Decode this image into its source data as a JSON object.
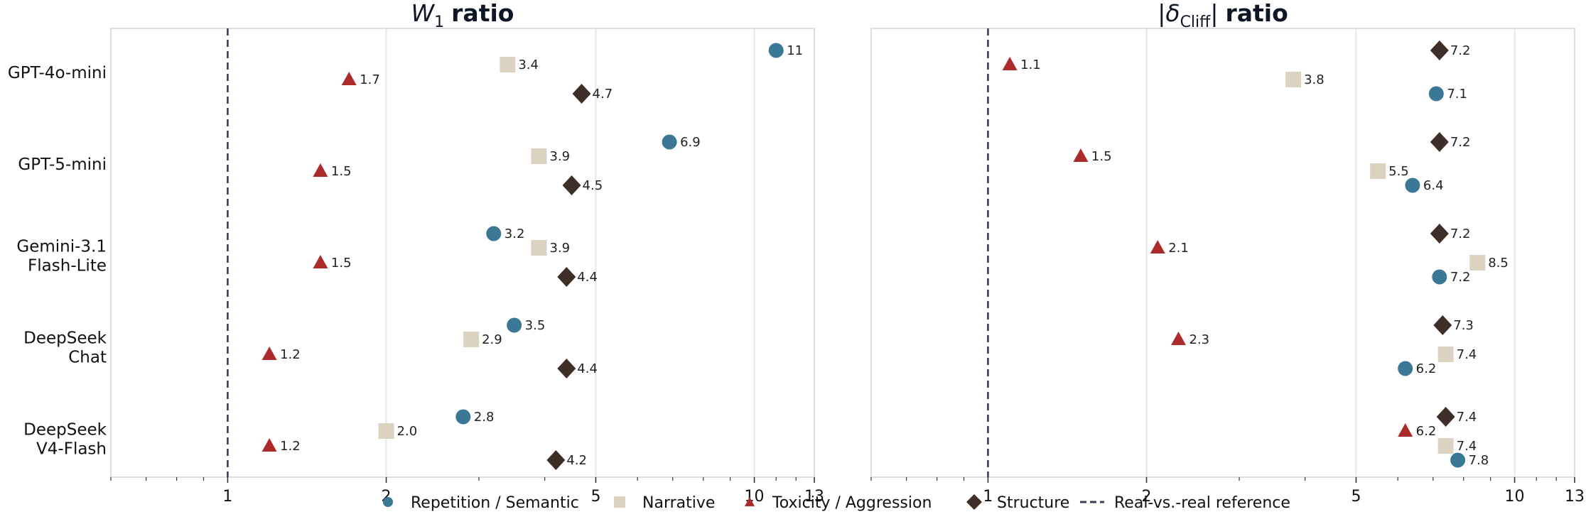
{
  "legend": [
    {
      "label": "Repetition / Semantic",
      "marker": "circle",
      "color": "#3a7896"
    },
    {
      "label": "Narrative",
      "marker": "square",
      "color": "#dcd2c2"
    },
    {
      "label": "Toxicity / Aggression",
      "marker": "triangle",
      "color": "#ad2a2a"
    },
    {
      "label": "Structure",
      "marker": "diamond",
      "color": "#3e2e27"
    },
    {
      "label": "Real-vs.-real reference",
      "marker": "dashed-line",
      "color": "#3a3f5a"
    }
  ],
  "chart_data": [
    {
      "type": "scatter",
      "title": "W₁ ratio",
      "title_main": "W",
      "title_sub": "1",
      "title_suffix": "ratio",
      "x_scale": "log",
      "xlim": [
        0.6,
        13
      ],
      "reference_x": 1,
      "x_ticks": [
        1,
        2,
        5,
        10,
        13
      ],
      "x_tick_labels": [
        "1",
        "2",
        "5",
        "10",
        "13"
      ],
      "grid": true,
      "categories": [
        "GPT-4o-mini",
        "GPT-5-mini",
        "Gemini-3.1 Flash-Lite",
        "DeepSeek Chat",
        "DeepSeek V4-Flash"
      ],
      "category_lines": [
        [
          "GPT-4o-mini"
        ],
        [
          "GPT-5-mini"
        ],
        [
          "Gemini-3.1",
          "Flash-Lite"
        ],
        [
          "DeepSeek",
          "Chat"
        ],
        [
          "DeepSeek",
          "V4-Flash"
        ]
      ],
      "series": [
        {
          "name": "Repetition / Semantic",
          "values": [
            11,
            6.9,
            3.2,
            3.5,
            2.8
          ],
          "labels": [
            "11",
            "6.9",
            "3.2",
            "3.5",
            "2.8"
          ]
        },
        {
          "name": "Narrative",
          "values": [
            3.4,
            3.9,
            3.9,
            2.9,
            2.0
          ],
          "labels": [
            "3.4",
            "3.9",
            "3.9",
            "2.9",
            "2.0"
          ]
        },
        {
          "name": "Toxicity / Aggression",
          "values": [
            1.7,
            1.5,
            1.5,
            1.2,
            1.2
          ],
          "labels": [
            "1.7",
            "1.5",
            "1.5",
            "1.2",
            "1.2"
          ]
        },
        {
          "name": "Structure",
          "values": [
            4.7,
            4.5,
            4.4,
            4.4,
            4.2
          ],
          "labels": [
            "4.7",
            "4.5",
            "4.4",
            "4.4",
            "4.2"
          ]
        }
      ],
      "series_order": [
        [
          "Repetition / Semantic",
          "Narrative",
          "Toxicity / Aggression",
          "Structure"
        ],
        [
          "Repetition / Semantic",
          "Narrative",
          "Toxicity / Aggression",
          "Structure"
        ],
        [
          "Repetition / Semantic",
          "Narrative",
          "Toxicity / Aggression",
          "Structure"
        ],
        [
          "Repetition / Semantic",
          "Narrative",
          "Toxicity / Aggression",
          "Structure"
        ],
        [
          "Repetition / Semantic",
          "Narrative",
          "Toxicity / Aggression",
          "Structure"
        ]
      ]
    },
    {
      "type": "scatter",
      "title": "|δCliff| ratio",
      "title_main": "|δ",
      "title_sub": "Cliff",
      "title_close": "|",
      "title_suffix": "ratio",
      "x_scale": "log",
      "xlim": [
        0.6,
        13
      ],
      "reference_x": 1,
      "x_ticks": [
        1,
        2,
        5,
        10,
        13
      ],
      "x_tick_labels": [
        "1",
        "2",
        "5",
        "10",
        "13"
      ],
      "grid": true,
      "categories": [
        "GPT-4o-mini",
        "GPT-5-mini",
        "Gemini-3.1 Flash-Lite",
        "DeepSeek Chat",
        "DeepSeek V4-Flash"
      ],
      "series": [
        {
          "name": "Repetition / Semantic",
          "values": [
            7.1,
            6.4,
            7.2,
            6.2,
            7.8
          ],
          "labels": [
            "7.1",
            "6.4",
            "7.2",
            "6.2",
            "7.8"
          ]
        },
        {
          "name": "Narrative",
          "values": [
            3.8,
            5.5,
            8.5,
            7.4,
            7.4
          ],
          "labels": [
            "3.8",
            "5.5",
            "8.5",
            "7.4",
            "7.4"
          ]
        },
        {
          "name": "Toxicity / Aggression",
          "values": [
            1.1,
            1.5,
            2.1,
            2.3,
            6.2
          ],
          "labels": [
            "1.1",
            "1.5",
            "2.1",
            "2.3",
            "6.2"
          ]
        },
        {
          "name": "Structure",
          "values": [
            7.2,
            7.2,
            7.2,
            7.3,
            7.4
          ],
          "labels": [
            "7.2",
            "7.2",
            "7.2",
            "7.3",
            "7.4"
          ]
        }
      ],
      "series_order": [
        [
          "Structure",
          "Toxicity / Aggression",
          "Narrative",
          "Repetition / Semantic"
        ],
        [
          "Structure",
          "Toxicity / Aggression",
          "Narrative",
          "Repetition / Semantic"
        ],
        [
          "Structure",
          "Toxicity / Aggression",
          "Narrative",
          "Repetition / Semantic"
        ],
        [
          "Structure",
          "Toxicity / Aggression",
          "Narrative",
          "Repetition / Semantic"
        ],
        [
          "Structure",
          "Toxicity / Aggression",
          "Narrative",
          "Repetition / Semantic"
        ]
      ]
    }
  ]
}
